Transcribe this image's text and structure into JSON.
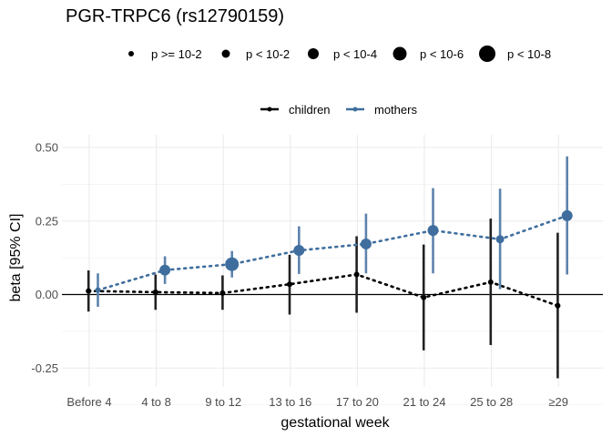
{
  "chart_data": {
    "type": "scatter",
    "title": "PGR-TRPC6 (rs12790159)",
    "xlabel": "gestational week",
    "ylabel": "beta [95% CI]",
    "categories": [
      "Before 4",
      "4 to 8",
      "9 to 12",
      "13 to 16",
      "17 to 20",
      "21 to 24",
      "25 to 28",
      "≥29"
    ],
    "ylim": [
      -0.28,
      0.5
    ],
    "yticks": [
      -0.25,
      0,
      0.25,
      0.5
    ],
    "ytick_labels": [
      "-0.25",
      "0.00",
      "0.25",
      "0.50"
    ],
    "grid": true,
    "legend_position": "top",
    "size_legend": {
      "entries": [
        {
          "label": "p >= 10-2",
          "size": 1
        },
        {
          "label": "p < 10-2",
          "size": 2
        },
        {
          "label": "p < 10-4",
          "size": 3
        },
        {
          "label": "p < 10-6",
          "size": 4
        },
        {
          "label": "p < 10-8",
          "size": 5
        }
      ]
    },
    "series": [
      {
        "name": "children",
        "color": "#000000",
        "beta": [
          0.012,
          0.008,
          0.005,
          0.035,
          0.068,
          -0.01,
          0.042,
          -0.038
        ],
        "ci_low": [
          -0.058,
          -0.052,
          -0.052,
          -0.068,
          -0.062,
          -0.19,
          -0.172,
          -0.285
        ],
        "ci_high": [
          0.082,
          0.068,
          0.065,
          0.135,
          0.198,
          0.17,
          0.258,
          0.21
        ],
        "size": [
          1,
          1,
          1,
          1,
          1,
          1,
          1,
          1
        ]
      },
      {
        "name": "mothers",
        "color": "#3f6e9e",
        "beta": [
          0.015,
          0.083,
          0.103,
          0.15,
          0.172,
          0.218,
          0.188,
          0.268
        ],
        "ci_low": [
          -0.042,
          0.036,
          0.058,
          0.07,
          0.072,
          0.072,
          0.018,
          0.068
        ],
        "ci_high": [
          0.072,
          0.13,
          0.148,
          0.232,
          0.275,
          0.362,
          0.36,
          0.47
        ],
        "size": [
          1,
          3,
          4,
          3,
          3,
          3,
          2,
          3
        ]
      }
    ]
  }
}
